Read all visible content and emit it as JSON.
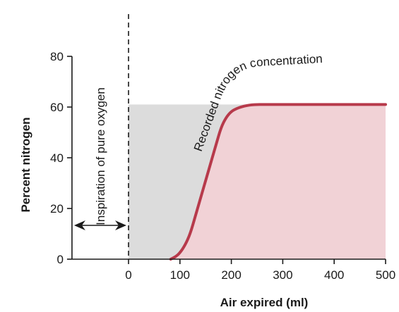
{
  "chart_data": {
    "type": "line",
    "title": "",
    "xlabel": "Air expired (ml)",
    "ylabel": "Percent nitrogen",
    "xlim": [
      -110,
      500
    ],
    "ylim": [
      0,
      80
    ],
    "xticks": [
      0,
      100,
      200,
      300,
      400,
      500
    ],
    "yticks": [
      0,
      20,
      40,
      60,
      80
    ],
    "grid": false,
    "inspiration_marker_x": 0,
    "plateau_percent": 61,
    "series": [
      {
        "name": "",
        "color": "#b73a4b",
        "fill_color": "#f1d2d6",
        "x": [
          82,
          92,
          100,
          110,
          120,
          130,
          140,
          150,
          160,
          170,
          180,
          190,
          200,
          210,
          220,
          230,
          240,
          250,
          260,
          280,
          300,
          350,
          400,
          450,
          500
        ],
        "y": [
          0,
          1,
          2.5,
          5.5,
          10,
          17,
          24,
          31,
          38,
          45,
          52,
          56,
          58.3,
          59.4,
          60.1,
          60.6,
          60.9,
          61,
          61,
          61,
          61,
          61,
          61,
          61,
          61
        ]
      }
    ],
    "annotations": {
      "curve_label": "Recorded nitrogen concentration",
      "inspiration_label": "Inspiration of pure oxygen"
    }
  }
}
